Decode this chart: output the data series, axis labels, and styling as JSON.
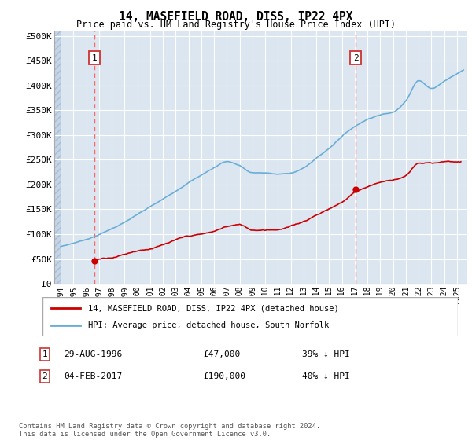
{
  "title1": "14, MASEFIELD ROAD, DISS, IP22 4PX",
  "title2": "Price paid vs. HM Land Registry's House Price Index (HPI)",
  "ylabel_ticks": [
    "£0",
    "£50K",
    "£100K",
    "£150K",
    "£200K",
    "£250K",
    "£300K",
    "£350K",
    "£400K",
    "£450K",
    "£500K"
  ],
  "ytick_values": [
    0,
    50000,
    100000,
    150000,
    200000,
    250000,
    300000,
    350000,
    400000,
    450000,
    500000
  ],
  "xlim_start": 1993.5,
  "xlim_end": 2025.8,
  "ylim_min": 0,
  "ylim_max": 510000,
  "purchase1_year": 1996.66,
  "purchase1_price": 47000,
  "purchase1_label": "1",
  "purchase1_date": "29-AUG-1996",
  "purchase1_amount": "£47,000",
  "purchase1_hpi_pct": "39% ↓ HPI",
  "purchase2_year": 2017.09,
  "purchase2_price": 190000,
  "purchase2_label": "2",
  "purchase2_date": "04-FEB-2017",
  "purchase2_amount": "£190,000",
  "purchase2_hpi_pct": "40% ↓ HPI",
  "hpi_color": "#6aaed6",
  "price_color": "#cc0000",
  "vline_color": "#ff6666",
  "background_plot": "#dce6f1",
  "grid_color": "#ffffff",
  "legend_line1": "14, MASEFIELD ROAD, DISS, IP22 4PX (detached house)",
  "legend_line2": "HPI: Average price, detached house, South Norfolk",
  "footer": "Contains HM Land Registry data © Crown copyright and database right 2024.\nThis data is licensed under the Open Government Licence v3.0."
}
